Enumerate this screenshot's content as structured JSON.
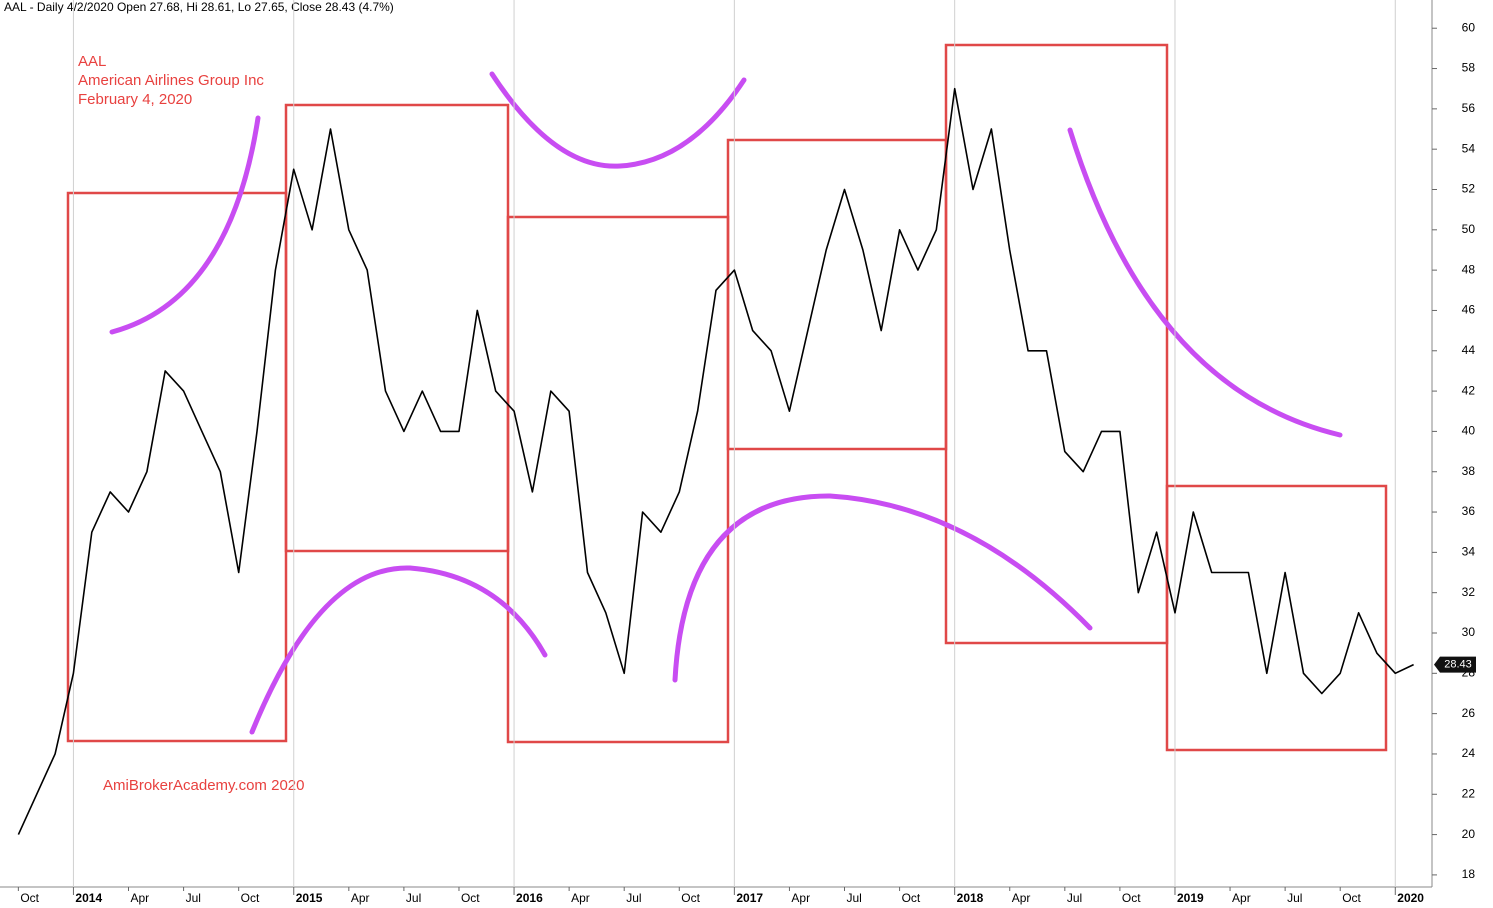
{
  "chart_data": {
    "type": "line",
    "title": "AAL - Daily 4/2/2020 Open 27.68, Hi 28.61, Lo 27.65, Close 28.43 (4.7%)",
    "annotations": [
      "AAL",
      "American Airlines Group Inc",
      "February 4, 2020",
      "AmiBrokerAcademy.com  2020"
    ],
    "last_price": 28.43,
    "x": [
      "2013-10",
      "2013-11",
      "2013-12",
      "2014-01",
      "2014-02",
      "2014-03",
      "2014-04",
      "2014-05",
      "2014-06",
      "2014-07",
      "2014-08",
      "2014-09",
      "2014-10",
      "2014-11",
      "2014-12",
      "2015-01",
      "2015-02",
      "2015-03",
      "2015-04",
      "2015-05",
      "2015-06",
      "2015-07",
      "2015-08",
      "2015-09",
      "2015-10",
      "2015-11",
      "2015-12",
      "2016-01",
      "2016-02",
      "2016-03",
      "2016-04",
      "2016-05",
      "2016-06",
      "2016-07",
      "2016-08",
      "2016-09",
      "2016-10",
      "2016-11",
      "2016-12",
      "2017-01",
      "2017-02",
      "2017-03",
      "2017-04",
      "2017-05",
      "2017-06",
      "2017-07",
      "2017-08",
      "2017-09",
      "2017-10",
      "2017-11",
      "2017-12",
      "2018-01",
      "2018-02",
      "2018-03",
      "2018-04",
      "2018-05",
      "2018-06",
      "2018-07",
      "2018-08",
      "2018-09",
      "2018-10",
      "2018-11",
      "2018-12",
      "2019-01",
      "2019-02",
      "2019-03",
      "2019-04",
      "2019-05",
      "2019-06",
      "2019-07",
      "2019-08",
      "2019-09",
      "2019-10",
      "2019-11",
      "2019-12",
      "2020-01",
      "2020-02"
    ],
    "series": [
      {
        "name": "AAL",
        "color": "#000000",
        "values": [
          20,
          22,
          24,
          28,
          35,
          37,
          36,
          38,
          43,
          42,
          40,
          38,
          33,
          40,
          48,
          53,
          50,
          55,
          50,
          48,
          42,
          40,
          42,
          40,
          40,
          46,
          42,
          41,
          37,
          42,
          41,
          33,
          31,
          28,
          36,
          35,
          37,
          41,
          47,
          48,
          45,
          44,
          41,
          45,
          49,
          52,
          49,
          45,
          50,
          48,
          50,
          57,
          52,
          55,
          49,
          44,
          44,
          39,
          38,
          40,
          40,
          32,
          35,
          31,
          36,
          33,
          33,
          33,
          28,
          33,
          28,
          27,
          28,
          31,
          29,
          28,
          28.43
        ]
      }
    ],
    "xlim": [
      "2013-09",
      "2020-03"
    ],
    "xticks": [
      {
        "value": "2013-10",
        "label": "Oct"
      },
      {
        "value": "2014-01",
        "label": "2014"
      },
      {
        "value": "2014-04",
        "label": "Apr"
      },
      {
        "value": "2014-07",
        "label": "Jul"
      },
      {
        "value": "2014-10",
        "label": "Oct"
      },
      {
        "value": "2015-01",
        "label": "2015"
      },
      {
        "value": "2015-04",
        "label": "Apr"
      },
      {
        "value": "2015-07",
        "label": "Jul"
      },
      {
        "value": "2015-10",
        "label": "Oct"
      },
      {
        "value": "2016-01",
        "label": "2016"
      },
      {
        "value": "2016-04",
        "label": "Apr"
      },
      {
        "value": "2016-07",
        "label": "Jul"
      },
      {
        "value": "2016-10",
        "label": "Oct"
      },
      {
        "value": "2017-01",
        "label": "2017"
      },
      {
        "value": "2017-04",
        "label": "Apr"
      },
      {
        "value": "2017-07",
        "label": "Jul"
      },
      {
        "value": "2017-10",
        "label": "Oct"
      },
      {
        "value": "2018-01",
        "label": "2018"
      },
      {
        "value": "2018-04",
        "label": "Apr"
      },
      {
        "value": "2018-07",
        "label": "Jul"
      },
      {
        "value": "2018-10",
        "label": "Oct"
      },
      {
        "value": "2019-01",
        "label": "2019"
      },
      {
        "value": "2019-04",
        "label": "Apr"
      },
      {
        "value": "2019-07",
        "label": "Jul"
      },
      {
        "value": "2019-10",
        "label": "Oct"
      },
      {
        "value": "2020-01",
        "label": "2020"
      }
    ],
    "ylim": [
      17.4,
      61.4
    ],
    "yticks": [
      18,
      20,
      22,
      24,
      26,
      28,
      30,
      32,
      34,
      36,
      38,
      40,
      42,
      44,
      46,
      48,
      50,
      52,
      54,
      56,
      58,
      60
    ]
  }
}
